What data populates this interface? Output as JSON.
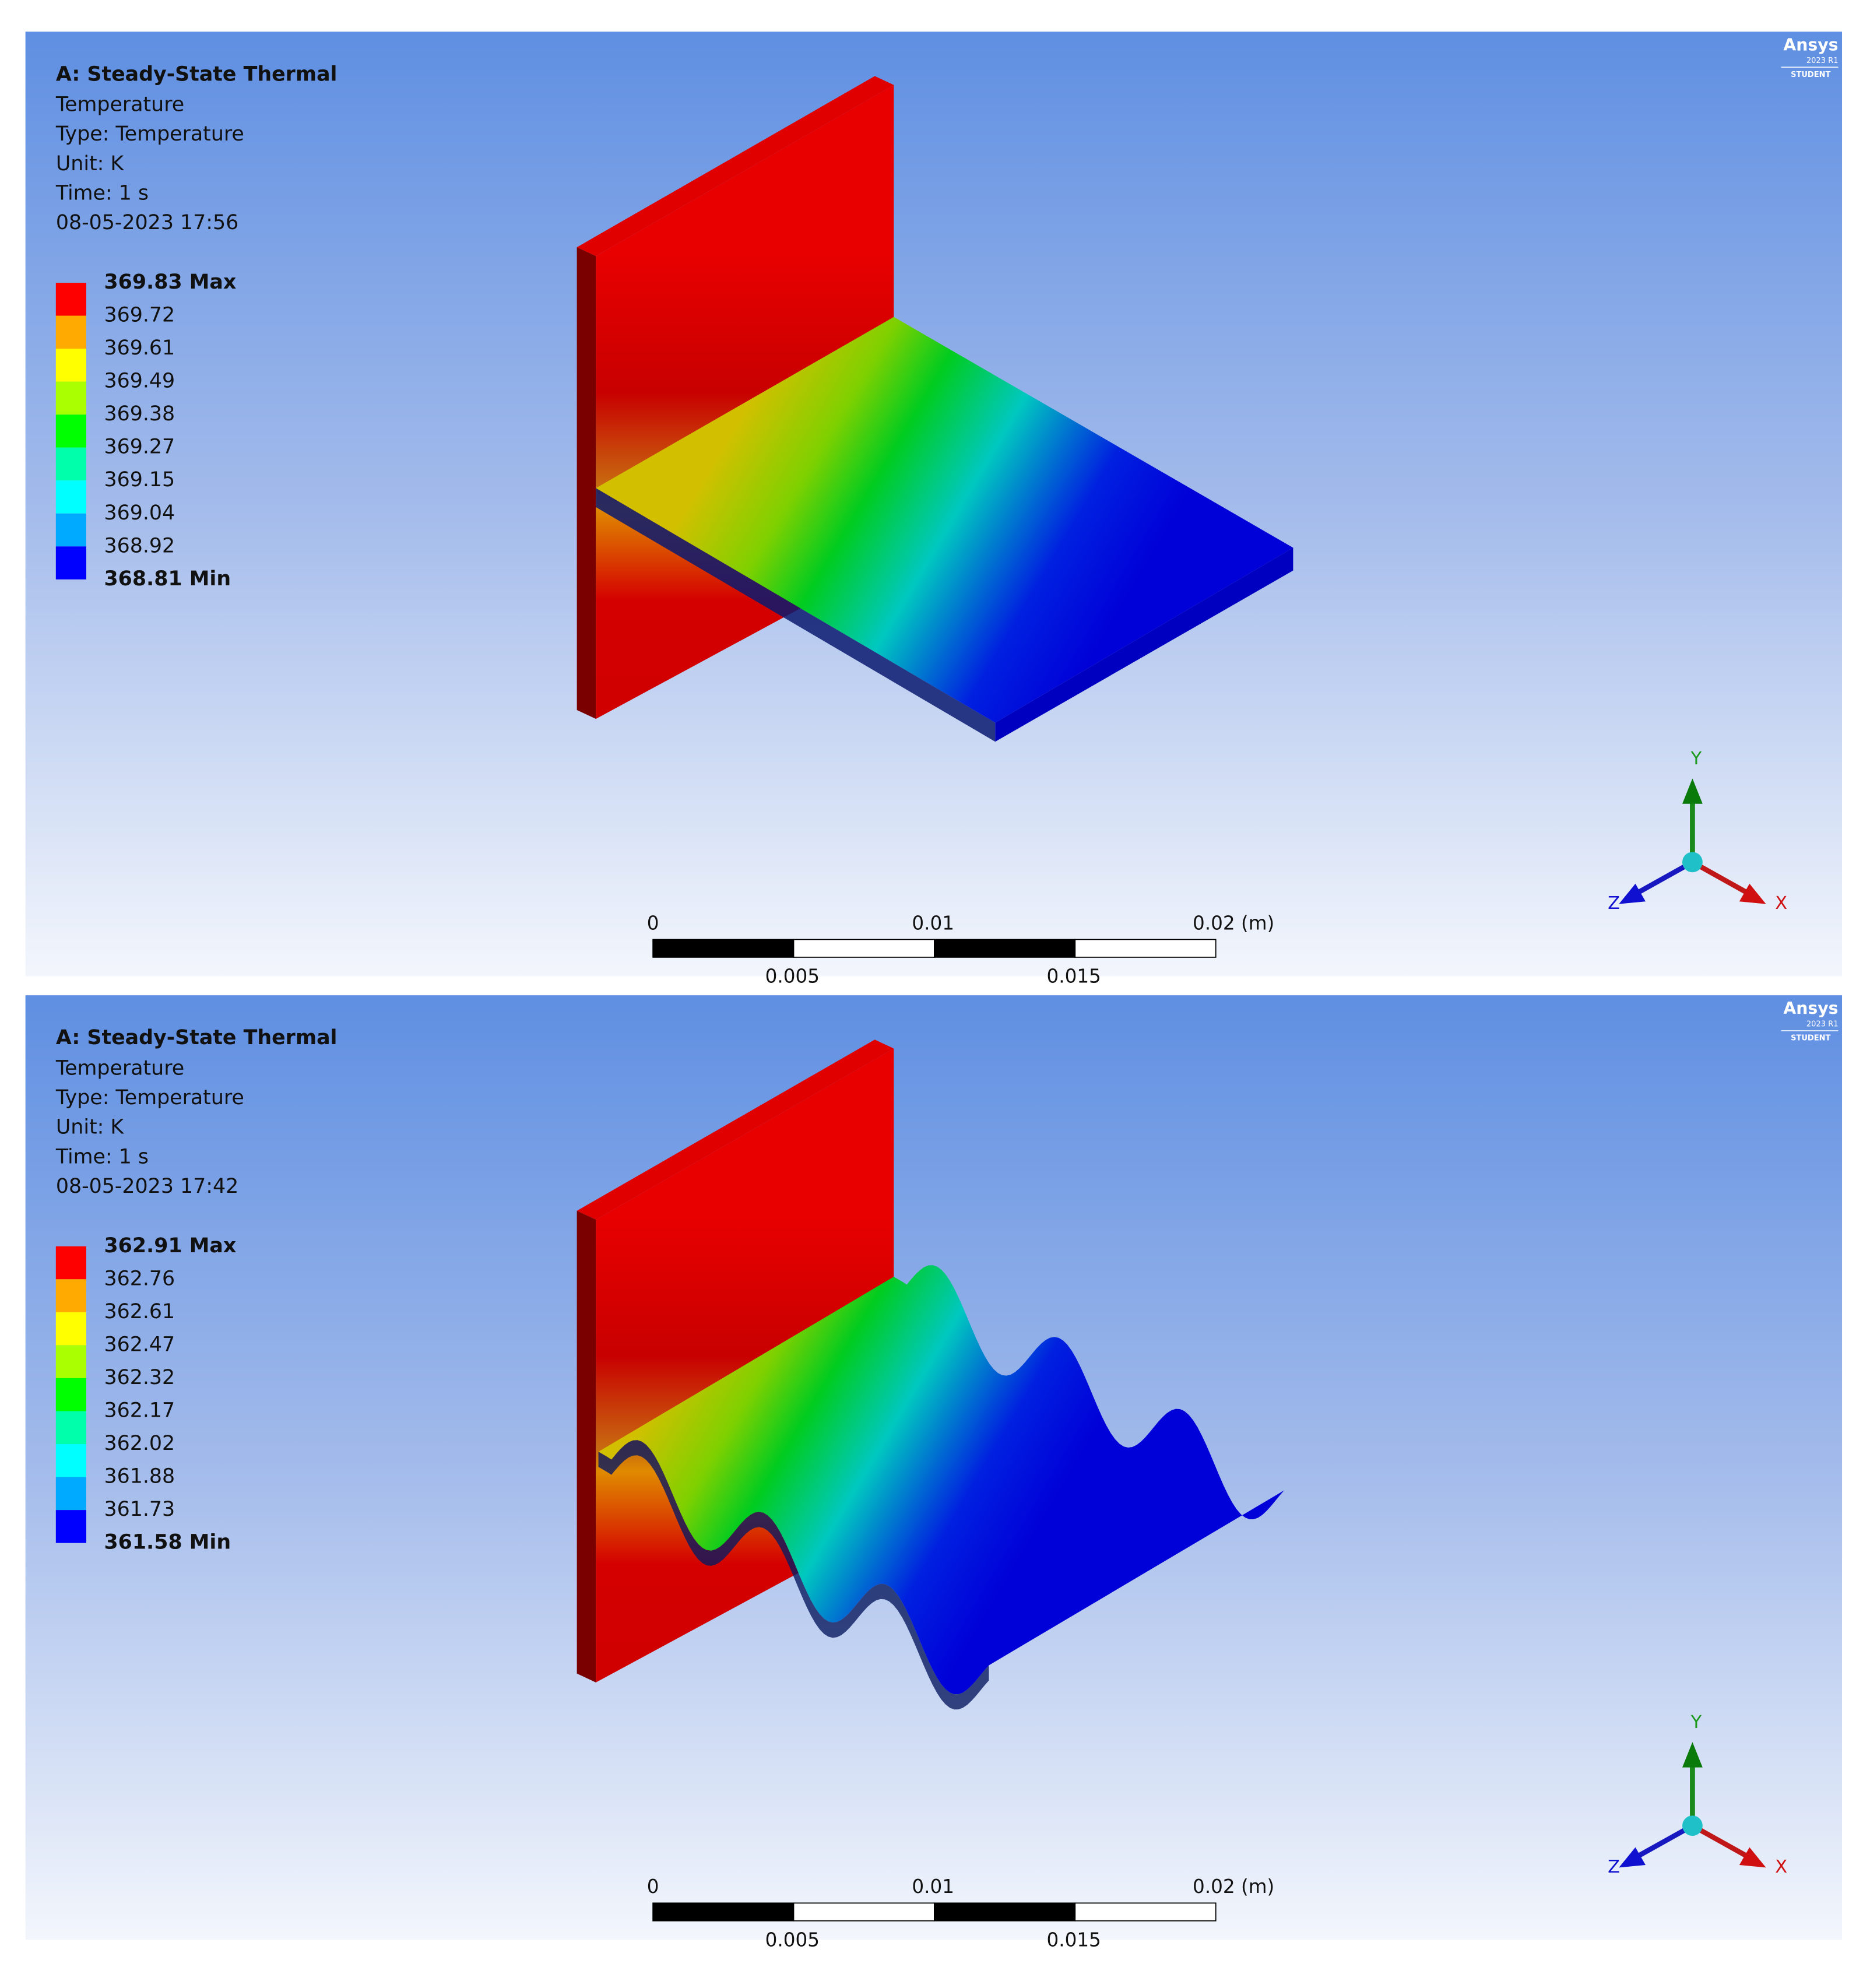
{
  "panels": [
    {
      "header": {
        "title": "A: Steady-State Thermal",
        "lines": [
          "Temperature",
          "Type: Temperature",
          "Unit: K",
          "Time: 1 s",
          "08-05-2023 17:56"
        ]
      },
      "legend": {
        "labels": [
          "369.83 Max",
          "369.72",
          "369.61",
          "369.49",
          "369.38",
          "369.27",
          "369.15",
          "369.04",
          "368.92",
          "368.81 Min"
        ],
        "colors": [
          "#ff0000",
          "#ffaa00",
          "#ffff00",
          "#aaff00",
          "#00ff00",
          "#00ffaa",
          "#00ffff",
          "#00aaff",
          "#0000ff"
        ]
      },
      "scale_bar": {
        "top_labels": [
          "0",
          "0.01",
          "0.02 (m)"
        ],
        "bottom_labels": [
          "0.005",
          "0.015"
        ]
      },
      "triad": {
        "x": "X",
        "y": "Y",
        "z": "Z"
      },
      "logo": {
        "name": "Ansys",
        "version": "2023 R1",
        "edition": "STUDENT"
      }
    },
    {
      "header": {
        "title": "A: Steady-State Thermal",
        "lines": [
          "Temperature",
          "Type: Temperature",
          "Unit: K",
          "Time: 1 s",
          "08-05-2023 17:42"
        ]
      },
      "legend": {
        "labels": [
          "362.91 Max",
          "362.76",
          "362.61",
          "362.47",
          "362.32",
          "362.17",
          "362.02",
          "361.88",
          "361.73",
          "361.58 Min"
        ],
        "colors": [
          "#ff0000",
          "#ffaa00",
          "#ffff00",
          "#aaff00",
          "#00ff00",
          "#00ffaa",
          "#00ffff",
          "#00aaff",
          "#0000ff"
        ]
      },
      "scale_bar": {
        "top_labels": [
          "0",
          "0.01",
          "0.02 (m)"
        ],
        "bottom_labels": [
          "0.005",
          "0.015"
        ]
      },
      "triad": {
        "x": "X",
        "y": "Y",
        "z": "Z"
      },
      "logo": {
        "name": "Ansys",
        "version": "2023 R1",
        "edition": "STUDENT"
      }
    }
  ]
}
